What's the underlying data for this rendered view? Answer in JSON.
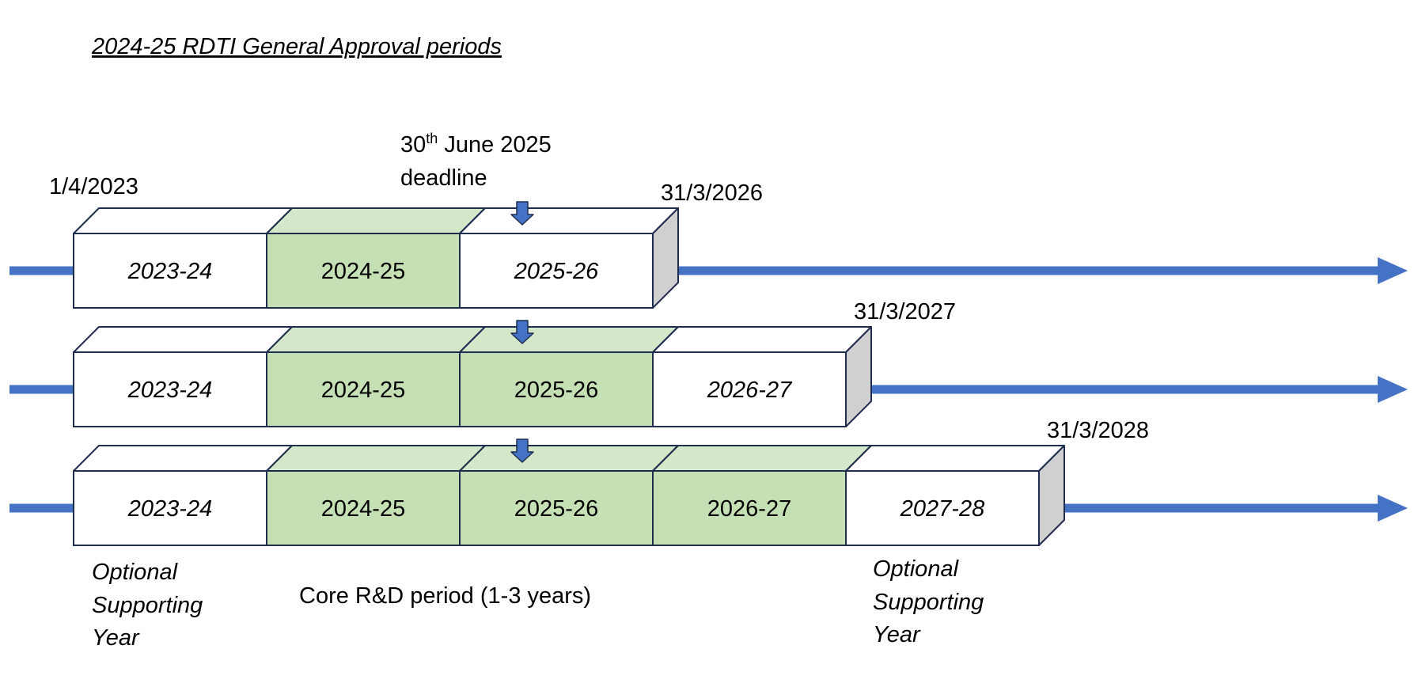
{
  "title": "2024-25 RDTI General Approval periods",
  "colors": {
    "axis": "#4472c4",
    "outline": "#1f2d4e",
    "core_fill": "#c5e0b4",
    "core_top": "#d4e7c9",
    "plain_fill": "#ffffff",
    "side_fill": "#d0d0d0"
  },
  "deadline": {
    "line1": "30",
    "sup": "th",
    "line1_rest": " June 2025",
    "line2": "deadline"
  },
  "start_date": "1/4/2023",
  "rows": [
    {
      "end_date": "31/3/2026",
      "segments": [
        {
          "label": "2023-24",
          "core": false
        },
        {
          "label": "2024-25",
          "core": true
        },
        {
          "label": "2025-26",
          "core": false
        }
      ]
    },
    {
      "end_date": "31/3/2027",
      "segments": [
        {
          "label": "2023-24",
          "core": false
        },
        {
          "label": "2024-25",
          "core": true
        },
        {
          "label": "2025-26",
          "core": true
        },
        {
          "label": "2026-27",
          "core": false
        }
      ]
    },
    {
      "end_date": "31/3/2028",
      "segments": [
        {
          "label": "2023-24",
          "core": false
        },
        {
          "label": "2024-25",
          "core": true
        },
        {
          "label": "2025-26",
          "core": true
        },
        {
          "label": "2026-27",
          "core": true
        },
        {
          "label": "2027-28",
          "core": false
        }
      ]
    }
  ],
  "annotations": {
    "left_optional": [
      "Optional",
      "Supporting",
      "Year"
    ],
    "core_period": "Core R&D period (1-3 years)",
    "right_optional": [
      "Optional",
      "Supporting",
      "Year"
    ]
  }
}
